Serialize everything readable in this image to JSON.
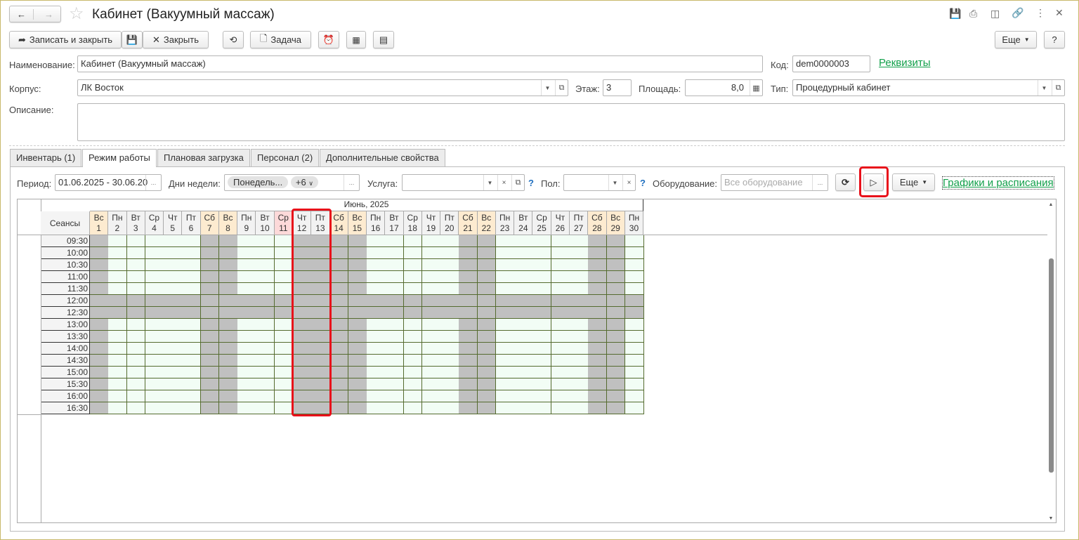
{
  "window": {
    "title": "Кабинет (Вакуумный массаж)"
  },
  "toolbar": {
    "save_close": "Записать и закрыть",
    "close": "Закрыть",
    "task": "Задача",
    "more": "Еще",
    "help": "?"
  },
  "fields": {
    "name_label": "Наименование:",
    "name_value": "Кабинет (Вакуумный массаж)",
    "code_label": "Код:",
    "code_value": "dem0000003",
    "requisites_link": "Реквизиты",
    "building_label": "Корпус:",
    "building_value": "ЛК Восток",
    "floor_label": "Этаж:",
    "floor_value": "3",
    "area_label": "Площадь:",
    "area_value": "8,0",
    "type_label": "Тип:",
    "type_value": "Процедурный кабинет",
    "description_label": "Описание:",
    "description_value": ""
  },
  "tabs": [
    {
      "label": "Инвентарь (1)"
    },
    {
      "label": "Режим работы",
      "active": true
    },
    {
      "label": "Плановая загрузка"
    },
    {
      "label": "Персонал (2)"
    },
    {
      "label": "Дополнительные свойства"
    }
  ],
  "filters": {
    "period_label": "Период:",
    "period_value": "01.06.2025 - 30.06.20",
    "weekdays_label": "Дни недели:",
    "weekdays_chip": "Понедель...",
    "weekdays_more": "+6",
    "service_label": "Услуга:",
    "service_value": "",
    "gender_label": "Пол:",
    "gender_value": "",
    "equipment_label": "Оборудование:",
    "equipment_placeholder": "Все оборудование",
    "more": "Еще",
    "schedules_link": "Графики и расписания",
    "help": "?"
  },
  "schedule": {
    "month": "Июнь, 2025",
    "sessions_label": "Сеансы",
    "days": [
      {
        "d": "1",
        "w": "Вс",
        "type": "weekend"
      },
      {
        "d": "2",
        "w": "Пн"
      },
      {
        "d": "3",
        "w": "Вт"
      },
      {
        "d": "4",
        "w": "Ср"
      },
      {
        "d": "5",
        "w": "Чт"
      },
      {
        "d": "6",
        "w": "Пт"
      },
      {
        "d": "7",
        "w": "Сб",
        "type": "weekend"
      },
      {
        "d": "8",
        "w": "Вс",
        "type": "weekend"
      },
      {
        "d": "9",
        "w": "Пн"
      },
      {
        "d": "10",
        "w": "Вт"
      },
      {
        "d": "11",
        "w": "Ср",
        "type": "preholiday"
      },
      {
        "d": "12",
        "w": "Чт"
      },
      {
        "d": "13",
        "w": "Пт"
      },
      {
        "d": "14",
        "w": "Сб",
        "type": "weekend"
      },
      {
        "d": "15",
        "w": "Вс",
        "type": "weekend"
      },
      {
        "d": "16",
        "w": "Пн"
      },
      {
        "d": "17",
        "w": "Вт"
      },
      {
        "d": "18",
        "w": "Ср"
      },
      {
        "d": "19",
        "w": "Чт"
      },
      {
        "d": "20",
        "w": "Пт"
      },
      {
        "d": "21",
        "w": "Сб",
        "type": "weekend"
      },
      {
        "d": "22",
        "w": "Вс",
        "type": "weekend"
      },
      {
        "d": "23",
        "w": "Пн"
      },
      {
        "d": "24",
        "w": "Вт"
      },
      {
        "d": "25",
        "w": "Ср"
      },
      {
        "d": "26",
        "w": "Чт"
      },
      {
        "d": "27",
        "w": "Пт"
      },
      {
        "d": "28",
        "w": "Сб",
        "type": "weekend"
      },
      {
        "d": "29",
        "w": "Вс",
        "type": "weekend"
      },
      {
        "d": "30",
        "w": "Пн"
      }
    ],
    "times": [
      "09:30",
      "10:00",
      "10:30",
      "11:00",
      "11:30",
      "12:00",
      "12:30",
      "13:00",
      "13:30",
      "14:00",
      "14:30",
      "15:00",
      "15:30",
      "16:00",
      "16:30"
    ],
    "closed_days": [
      "1",
      "7",
      "8",
      "12",
      "13",
      "14",
      "15",
      "21",
      "22",
      "28",
      "29"
    ],
    "closed_times": [
      "12:00",
      "12:30"
    ],
    "highlighted_days": [
      "12",
      "13"
    ]
  },
  "colors": {
    "open": "#f2fdf5",
    "closed": "#c0c0c0",
    "weekend_header": "#fdebd0",
    "preholiday_header": "#fdd9d9",
    "highlight": "#e8101a",
    "link": "#12a04b"
  }
}
